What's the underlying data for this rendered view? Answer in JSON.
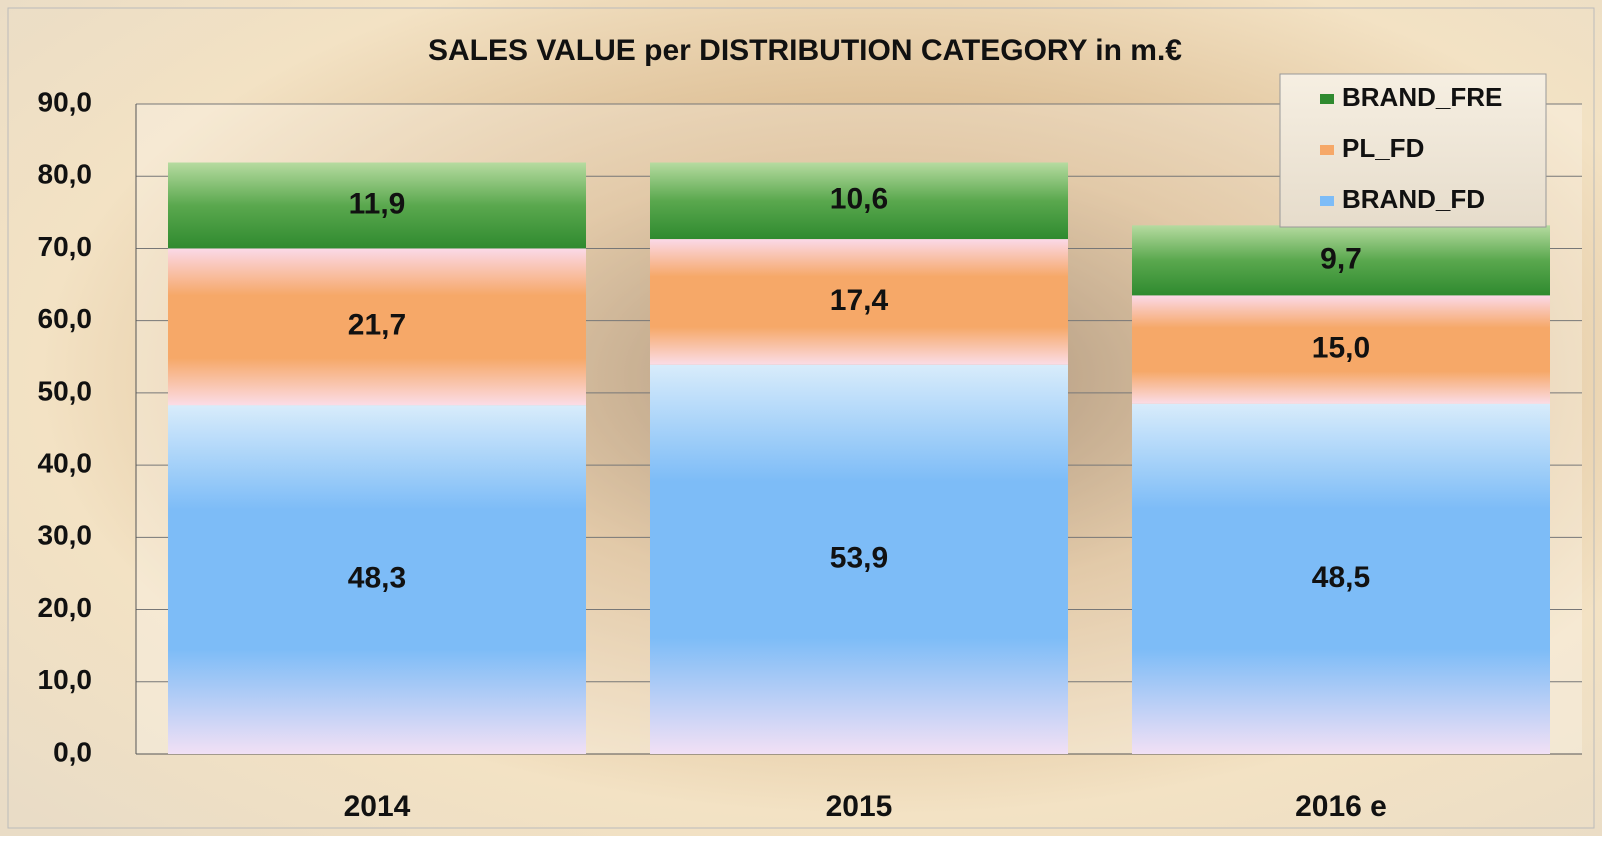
{
  "chart_data": {
    "type": "stacked_bar",
    "title": "SALES VALUE per DISTRIBUTION CATEGORY in m.€",
    "categories": [
      "2014",
      "2015",
      "2016 e"
    ],
    "series": [
      {
        "name": "BRAND_FD",
        "color": "#7dbcf7",
        "values": [
          48.3,
          53.9,
          48.5
        ],
        "value_labels": [
          "48,3",
          "53,9",
          "48,5"
        ]
      },
      {
        "name": "PL_FD",
        "color": "#f6a868",
        "values": [
          21.7,
          17.4,
          15.0
        ],
        "value_labels": [
          "21,7",
          "17,4",
          "15,0"
        ]
      },
      {
        "name": "BRAND_FRE",
        "color": "#2f8a2f",
        "values": [
          11.9,
          10.6,
          9.7
        ],
        "value_labels": [
          "11,9",
          "10,6",
          "9,7"
        ]
      }
    ],
    "ylim": [
      0,
      90
    ],
    "yticks": [
      {
        "value": 0,
        "label": "0,0"
      },
      {
        "value": 10,
        "label": "10,0"
      },
      {
        "value": 20,
        "label": "20,0"
      },
      {
        "value": 30,
        "label": "30,0"
      },
      {
        "value": 40,
        "label": "40,0"
      },
      {
        "value": 50,
        "label": "50,0"
      },
      {
        "value": 60,
        "label": "60,0"
      },
      {
        "value": 70,
        "label": "70,0"
      },
      {
        "value": 80,
        "label": "80,0"
      },
      {
        "value": 90,
        "label": "90,0"
      }
    ],
    "grid": true,
    "legend": "top-right"
  }
}
